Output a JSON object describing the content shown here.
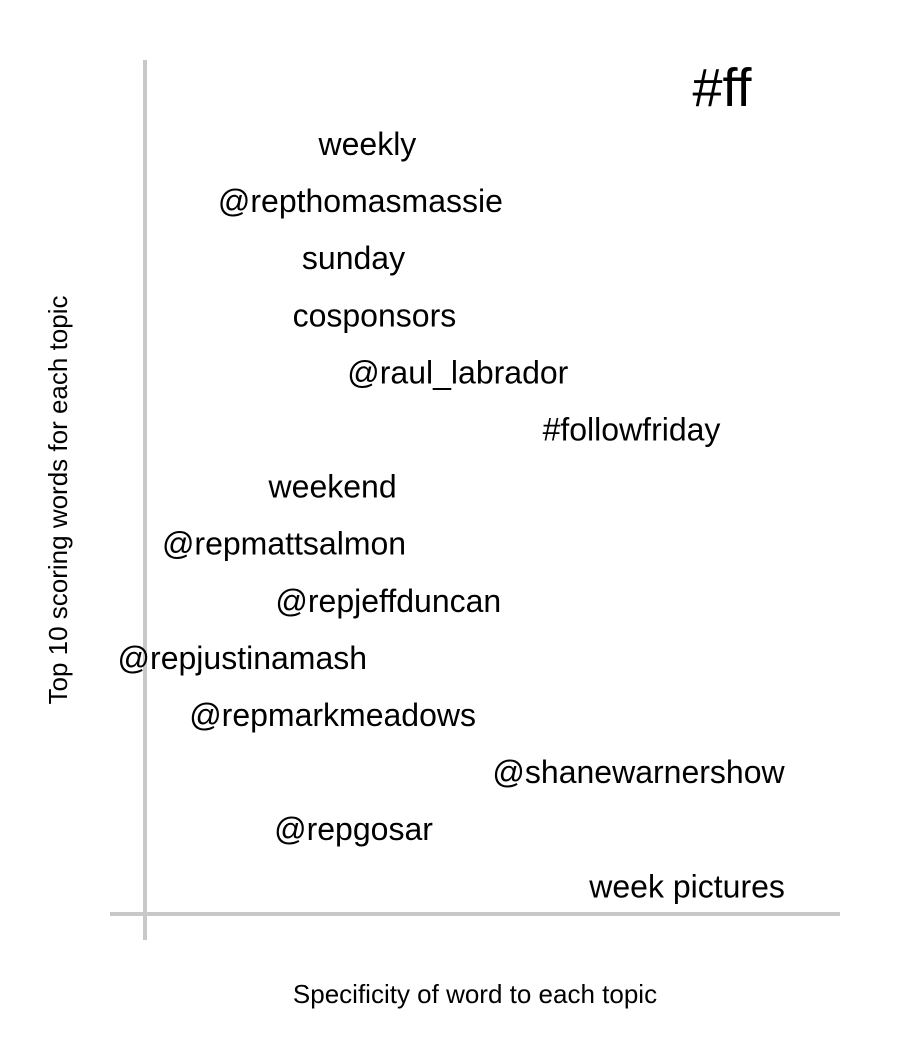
{
  "chart_data": {
    "type": "scatter",
    "title": "#ff",
    "xlabel": "Specificity of word to each topic",
    "ylabel": "Top 10 scoring words for each topic",
    "grid": false,
    "axis_color": "#c8c8c8",
    "text_color": "#000000",
    "words": [
      {
        "label": "weekly",
        "x": 0.32
      },
      {
        "label": "@repthomasmassie",
        "x": 0.31
      },
      {
        "label": "sunday",
        "x": 0.3
      },
      {
        "label": "cosponsors",
        "x": 0.33
      },
      {
        "label": "@raul_labrador",
        "x": 0.45
      },
      {
        "label": "#followfriday",
        "x": 0.7
      },
      {
        "label": "weekend",
        "x": 0.27
      },
      {
        "label": "@repmattsalmon",
        "x": 0.2
      },
      {
        "label": "@repjeffduncan",
        "x": 0.35
      },
      {
        "label": "@repjustinamash",
        "x": 0.14
      },
      {
        "label": "@repmarkmeadows",
        "x": 0.27
      },
      {
        "label": "@shanewarnershow",
        "x": 0.71
      },
      {
        "label": "@repgosar",
        "x": 0.3
      },
      {
        "label": "week pictures",
        "x": 0.78
      }
    ]
  }
}
